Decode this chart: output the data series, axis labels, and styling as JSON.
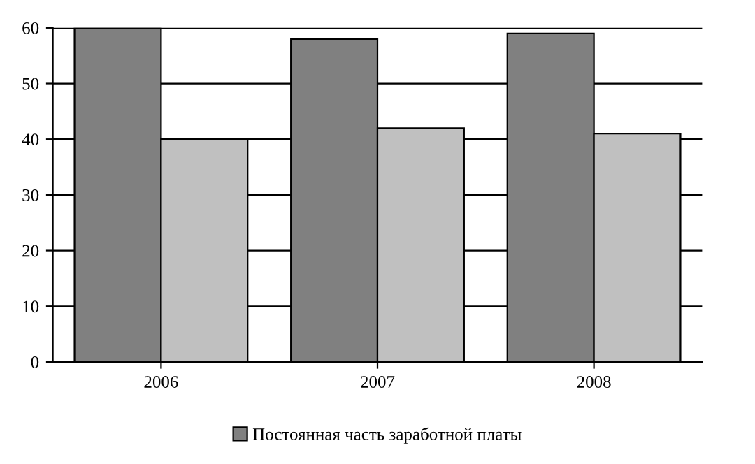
{
  "chart_data": {
    "type": "bar",
    "categories": [
      "2006",
      "2007",
      "2008"
    ],
    "series": [
      {
        "name": "Постоянная часть заработной платы",
        "color": "#808080",
        "values": [
          60,
          58,
          59
        ]
      },
      {
        "color": "#c0c0c0",
        "values": [
          40,
          42,
          41
        ]
      }
    ],
    "ylim": [
      0,
      60
    ],
    "yticks": [
      0,
      10,
      20,
      30,
      40,
      50,
      60
    ],
    "grid": "y",
    "legend": "bottom"
  }
}
